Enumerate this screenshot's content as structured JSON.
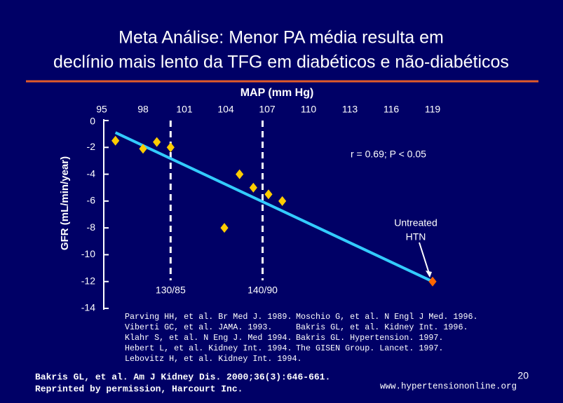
{
  "chart_data": {
    "type": "scatter",
    "title": [
      "Meta Análise: Menor PA média resulta em",
      "declínio mais lento da TFG em diabéticos e não-diabéticos"
    ],
    "x_label": "MAP (mm Hg)",
    "y_label": "GFR (mL/min/year)",
    "xlim": [
      95,
      119
    ],
    "ylim": [
      -14,
      0
    ],
    "xticks": [
      95,
      98,
      101,
      104,
      107,
      110,
      113,
      116,
      119
    ],
    "yticks": [
      0,
      -2,
      -4,
      -6,
      -8,
      -10,
      -12,
      -14
    ],
    "series": [
      {
        "kind": "points",
        "color": "#ffcc00",
        "x": [
          96,
          98,
          99,
          100,
          105,
          106,
          107.1,
          108.1,
          103.9
        ],
        "y": [
          -1.5,
          -2.1,
          -1.6,
          -2,
          -4,
          -5,
          -5.5,
          -6,
          -8
        ]
      },
      {
        "kind": "points",
        "color": "#ff6600",
        "x": [
          119
        ],
        "y": [
          -12
        ]
      },
      {
        "kind": "line",
        "color": "#33ccff",
        "x": [
          96,
          119
        ],
        "y": [
          -0.9,
          -12
        ]
      }
    ],
    "reference_lines": [
      {
        "x": 100,
        "label": "130/85"
      },
      {
        "x": 106.67,
        "label": "140/90"
      }
    ],
    "stat_annotation": "r = 0.69; P < 0.05",
    "point_annotation": [
      "Untreated",
      "HTN"
    ]
  },
  "references": {
    "left": [
      "Parving HH, et al. Br Med J. 1989.",
      "Viberti GC, et al. JAMA. 1993.",
      "Klahr S, et al. N Eng J. Med 1994.",
      "Hebert L, et al. Kidney Int. 1994.",
      "Lebovitz H, et al. Kidney Int. 1994."
    ],
    "right": [
      "Moschio G, et al. N Engl J Med. 1996.",
      "Bakris GL, et al. Kidney Int. 1996.",
      "Bakris GL. Hypertension. 1997.",
      "The GISEN Group. Lancet. 1997."
    ]
  },
  "footer": {
    "citation": [
      "Bakris GL, et al. Am J Kidney Dis. 2000;36(3):646-661.",
      "Reprinted by permission, Harcourt Inc."
    ],
    "url": "www.hypertensiononline.org",
    "page": "20"
  }
}
